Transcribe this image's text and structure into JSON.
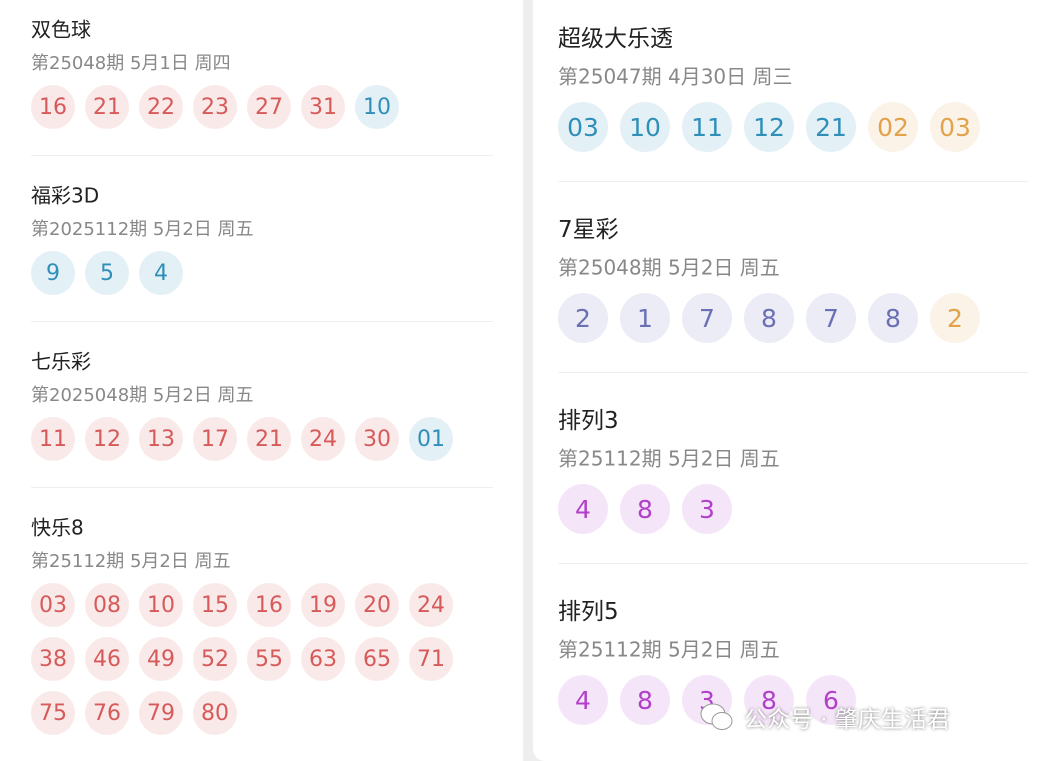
{
  "left": [
    {
      "title": "双色球",
      "issue": "第25048期 5月1日 周四",
      "groups": [
        {
          "color": "#d65a5a",
          "numbers": [
            "16",
            "21",
            "22",
            "23",
            "27",
            "31"
          ]
        },
        {
          "color": "#2f8fb8",
          "numbers": [
            "10"
          ]
        }
      ]
    },
    {
      "title": "福彩3D",
      "issue": "第2025112期 5月2日 周五",
      "groups": [
        {
          "color": "#2f8fb8",
          "numbers": [
            "9",
            "5",
            "4"
          ]
        }
      ]
    },
    {
      "title": "七乐彩",
      "issue": "第2025048期 5月2日 周五",
      "groups": [
        {
          "color": "#d65a5a",
          "numbers": [
            "11",
            "12",
            "13",
            "17",
            "21",
            "24",
            "30"
          ]
        },
        {
          "color": "#2f8fb8",
          "numbers": [
            "01"
          ]
        }
      ]
    },
    {
      "title": "快乐8",
      "issue": "第25112期 5月2日 周五",
      "groups": [
        {
          "color": "#d65a5a",
          "numbers": [
            "03",
            "08",
            "10",
            "15",
            "16",
            "19",
            "20",
            "24",
            "38",
            "46",
            "49",
            "52",
            "55",
            "63",
            "65",
            "71",
            "75",
            "76",
            "79",
            "80"
          ]
        }
      ]
    }
  ],
  "right": [
    {
      "title": "超级大乐透",
      "issue": "第25047期 4月30日 周三",
      "groups": [
        {
          "color": "#2f8fb8",
          "numbers": [
            "03",
            "10",
            "11",
            "12",
            "21"
          ]
        },
        {
          "color": "#e3a24a",
          "numbers": [
            "02",
            "03"
          ]
        }
      ]
    },
    {
      "title": "7星彩",
      "issue": "第25048期 5月2日 周五",
      "groups": [
        {
          "color": "#6b6fb5",
          "numbers": [
            "2",
            "1",
            "7",
            "8",
            "7",
            "8"
          ]
        },
        {
          "color": "#e3a24a",
          "numbers": [
            "2"
          ]
        }
      ]
    },
    {
      "title": "排列3",
      "issue": "第25112期 5月2日 周五",
      "groups": [
        {
          "color": "#b23fc9",
          "numbers": [
            "4",
            "8",
            "3"
          ]
        }
      ]
    },
    {
      "title": "排列5",
      "issue": "第25112期 5月2日 周五",
      "groups": [
        {
          "color": "#b23fc9",
          "numbers": [
            "4",
            "8",
            "3",
            "8",
            "6"
          ]
        }
      ]
    }
  ],
  "watermark": "公众号 · 肇庆生活君"
}
